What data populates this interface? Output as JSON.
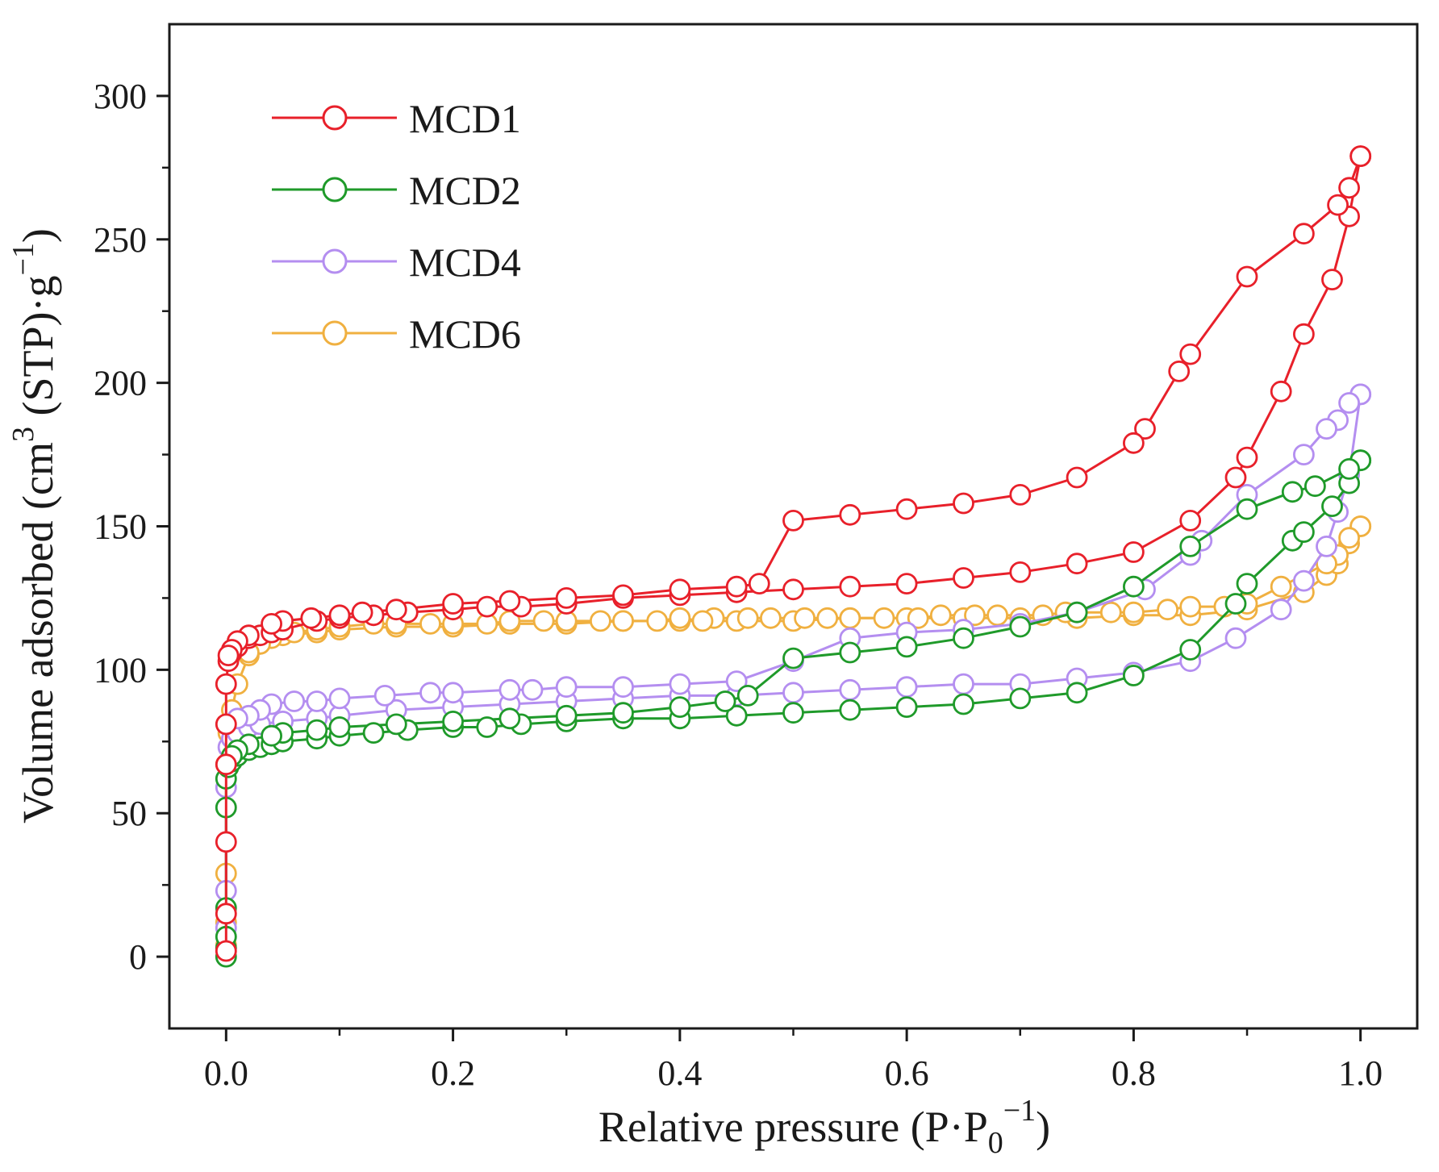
{
  "chart_data": {
    "type": "line",
    "xlabel": "Relative pressure (P·P",
    "xlabel_sub": "0",
    "xlabel_sup": "−1",
    "xlabel_close": ")",
    "ylabel": "Volume adsorbed (cm",
    "ylabel_sup1": "3",
    "ylabel_mid": " (STP)·g",
    "ylabel_sup2": "−1",
    "ylabel_close": ")",
    "xlim": [
      -0.05,
      1.05
    ],
    "ylim": [
      -25,
      325
    ],
    "x_ticks": [
      0.0,
      0.2,
      0.4,
      0.6,
      0.8,
      1.0
    ],
    "x_tick_labels": [
      "0.0",
      "0.2",
      "0.4",
      "0.6",
      "0.8",
      "1.0"
    ],
    "y_ticks": [
      0,
      50,
      100,
      150,
      200,
      250,
      300
    ],
    "y_tick_labels": [
      "0",
      "50",
      "100",
      "150",
      "200",
      "250",
      "300"
    ],
    "grid": false,
    "legend_position": "top-left",
    "series": [
      {
        "name": "MCD1",
        "color": "#e8202a",
        "adsorption": [
          [
            0.0,
            2
          ],
          [
            0.0,
            15
          ],
          [
            0.0,
            40
          ],
          [
            0.0,
            67
          ],
          [
            0.0,
            81
          ],
          [
            0.0,
            95
          ],
          [
            0.002,
            103
          ],
          [
            0.005,
            106
          ],
          [
            0.01,
            108
          ],
          [
            0.02,
            111
          ],
          [
            0.03,
            112
          ],
          [
            0.04,
            113
          ],
          [
            0.05,
            114
          ],
          [
            0.08,
            117
          ],
          [
            0.1,
            118
          ],
          [
            0.13,
            119
          ],
          [
            0.16,
            120
          ],
          [
            0.2,
            121
          ],
          [
            0.23,
            122
          ],
          [
            0.26,
            122
          ],
          [
            0.3,
            123
          ],
          [
            0.35,
            125
          ],
          [
            0.4,
            126
          ],
          [
            0.45,
            127
          ],
          [
            0.5,
            128
          ],
          [
            0.55,
            129
          ],
          [
            0.6,
            130
          ],
          [
            0.65,
            132
          ],
          [
            0.7,
            134
          ],
          [
            0.75,
            137
          ],
          [
            0.8,
            141
          ],
          [
            0.85,
            152
          ],
          [
            0.89,
            167
          ],
          [
            0.9,
            174
          ],
          [
            0.93,
            197
          ],
          [
            0.95,
            217
          ],
          [
            0.975,
            236
          ],
          [
            0.99,
            258
          ],
          [
            1.0,
            279
          ]
        ],
        "desorption": [
          [
            1.0,
            279
          ],
          [
            0.99,
            268
          ],
          [
            0.98,
            262
          ],
          [
            0.95,
            252
          ],
          [
            0.9,
            237
          ],
          [
            0.85,
            210
          ],
          [
            0.84,
            204
          ],
          [
            0.81,
            184
          ],
          [
            0.8,
            179
          ],
          [
            0.75,
            167
          ],
          [
            0.7,
            161
          ],
          [
            0.65,
            158
          ],
          [
            0.6,
            156
          ],
          [
            0.55,
            154
          ],
          [
            0.5,
            152
          ],
          [
            0.47,
            130
          ],
          [
            0.45,
            129
          ],
          [
            0.4,
            128
          ],
          [
            0.35,
            126
          ],
          [
            0.3,
            125
          ],
          [
            0.25,
            124
          ],
          [
            0.2,
            123
          ],
          [
            0.15,
            121
          ],
          [
            0.12,
            120
          ],
          [
            0.1,
            119
          ],
          [
            0.075,
            118
          ],
          [
            0.05,
            117
          ],
          [
            0.04,
            116
          ],
          [
            0.02,
            112
          ],
          [
            0.01,
            110
          ],
          [
            0.005,
            107
          ],
          [
            0.002,
            105
          ]
        ]
      },
      {
        "name": "MCD2",
        "color": "#1f9a2a",
        "adsorption": [
          [
            0.0,
            0
          ],
          [
            0.0,
            3
          ],
          [
            0.0,
            7
          ],
          [
            0.0,
            17
          ],
          [
            0.0,
            52
          ],
          [
            0.0,
            62
          ],
          [
            0.002,
            66
          ],
          [
            0.005,
            68
          ],
          [
            0.01,
            70
          ],
          [
            0.02,
            72
          ],
          [
            0.03,
            73
          ],
          [
            0.04,
            74
          ],
          [
            0.05,
            75
          ],
          [
            0.08,
            76
          ],
          [
            0.1,
            77
          ],
          [
            0.13,
            78
          ],
          [
            0.16,
            79
          ],
          [
            0.2,
            80
          ],
          [
            0.23,
            80
          ],
          [
            0.26,
            81
          ],
          [
            0.3,
            82
          ],
          [
            0.35,
            83
          ],
          [
            0.4,
            83
          ],
          [
            0.45,
            84
          ],
          [
            0.5,
            85
          ],
          [
            0.55,
            86
          ],
          [
            0.6,
            87
          ],
          [
            0.65,
            88
          ],
          [
            0.7,
            90
          ],
          [
            0.75,
            92
          ],
          [
            0.8,
            98
          ],
          [
            0.85,
            107
          ],
          [
            0.89,
            123
          ],
          [
            0.9,
            130
          ],
          [
            0.94,
            145
          ],
          [
            0.95,
            148
          ],
          [
            0.975,
            157
          ],
          [
            0.99,
            165
          ],
          [
            1.0,
            173
          ]
        ],
        "desorption": [
          [
            1.0,
            173
          ],
          [
            0.99,
            170
          ],
          [
            0.96,
            164
          ],
          [
            0.94,
            162
          ],
          [
            0.9,
            156
          ],
          [
            0.85,
            143
          ],
          [
            0.8,
            129
          ],
          [
            0.75,
            120
          ],
          [
            0.7,
            115
          ],
          [
            0.65,
            111
          ],
          [
            0.6,
            108
          ],
          [
            0.55,
            106
          ],
          [
            0.5,
            104
          ],
          [
            0.46,
            91
          ],
          [
            0.44,
            89
          ],
          [
            0.4,
            87
          ],
          [
            0.35,
            85
          ],
          [
            0.3,
            84
          ],
          [
            0.25,
            83
          ],
          [
            0.2,
            82
          ],
          [
            0.15,
            81
          ],
          [
            0.1,
            80
          ],
          [
            0.08,
            79
          ],
          [
            0.05,
            78
          ],
          [
            0.04,
            77
          ],
          [
            0.02,
            74
          ],
          [
            0.01,
            72
          ],
          [
            0.005,
            70
          ]
        ]
      },
      {
        "name": "MCD4",
        "color": "#b48ef0",
        "adsorption": [
          [
            0.0,
            3
          ],
          [
            0.0,
            10
          ],
          [
            0.0,
            23
          ],
          [
            0.0,
            59
          ],
          [
            0.002,
            73
          ],
          [
            0.005,
            76
          ],
          [
            0.01,
            78
          ],
          [
            0.02,
            80
          ],
          [
            0.03,
            81
          ],
          [
            0.05,
            82
          ],
          [
            0.08,
            83
          ],
          [
            0.1,
            84
          ],
          [
            0.15,
            86
          ],
          [
            0.2,
            87
          ],
          [
            0.25,
            88
          ],
          [
            0.3,
            89
          ],
          [
            0.35,
            90
          ],
          [
            0.4,
            91
          ],
          [
            0.45,
            91
          ],
          [
            0.5,
            92
          ],
          [
            0.55,
            93
          ],
          [
            0.6,
            94
          ],
          [
            0.65,
            95
          ],
          [
            0.7,
            95
          ],
          [
            0.75,
            97
          ],
          [
            0.8,
            99
          ],
          [
            0.85,
            103
          ],
          [
            0.89,
            111
          ],
          [
            0.93,
            121
          ],
          [
            0.95,
            131
          ],
          [
            0.97,
            143
          ],
          [
            0.98,
            155
          ],
          [
            0.99,
            168
          ],
          [
            1.0,
            196
          ]
        ],
        "desorption": [
          [
            1.0,
            196
          ],
          [
            0.99,
            193
          ],
          [
            0.98,
            187
          ],
          [
            0.97,
            184
          ],
          [
            0.95,
            175
          ],
          [
            0.9,
            161
          ],
          [
            0.86,
            145
          ],
          [
            0.85,
            140
          ],
          [
            0.81,
            128
          ],
          [
            0.75,
            120
          ],
          [
            0.7,
            116
          ],
          [
            0.65,
            114
          ],
          [
            0.6,
            113
          ],
          [
            0.55,
            111
          ],
          [
            0.5,
            103
          ],
          [
            0.45,
            96
          ],
          [
            0.4,
            95
          ],
          [
            0.35,
            94
          ],
          [
            0.3,
            94
          ],
          [
            0.27,
            93
          ],
          [
            0.25,
            93
          ],
          [
            0.2,
            92
          ],
          [
            0.18,
            92
          ],
          [
            0.14,
            91
          ],
          [
            0.1,
            90
          ],
          [
            0.08,
            89
          ],
          [
            0.06,
            89
          ],
          [
            0.04,
            88
          ],
          [
            0.03,
            86
          ],
          [
            0.02,
            84
          ],
          [
            0.01,
            83
          ]
        ]
      },
      {
        "name": "MCD6",
        "color": "#f0b040",
        "adsorption": [
          [
            0.0,
            4
          ],
          [
            0.0,
            12
          ],
          [
            0.0,
            29
          ],
          [
            0.0,
            67
          ],
          [
            0.002,
            78
          ],
          [
            0.005,
            86
          ],
          [
            0.01,
            95
          ],
          [
            0.02,
            105
          ],
          [
            0.03,
            109
          ],
          [
            0.05,
            112
          ],
          [
            0.08,
            113
          ],
          [
            0.1,
            114
          ],
          [
            0.15,
            115
          ],
          [
            0.2,
            115
          ],
          [
            0.25,
            116
          ],
          [
            0.3,
            116
          ],
          [
            0.35,
            117
          ],
          [
            0.4,
            117
          ],
          [
            0.45,
            117
          ],
          [
            0.5,
            117
          ],
          [
            0.55,
            118
          ],
          [
            0.6,
            118
          ],
          [
            0.65,
            118
          ],
          [
            0.7,
            118
          ],
          [
            0.75,
            118
          ],
          [
            0.8,
            119
          ],
          [
            0.85,
            119
          ],
          [
            0.9,
            121
          ],
          [
            0.95,
            127
          ],
          [
            0.97,
            133
          ],
          [
            0.98,
            137
          ],
          [
            0.99,
            144
          ],
          [
            1.0,
            150
          ]
        ],
        "desorption": [
          [
            1.0,
            150
          ],
          [
            0.99,
            146
          ],
          [
            0.98,
            140
          ],
          [
            0.97,
            137
          ],
          [
            0.93,
            129
          ],
          [
            0.9,
            123
          ],
          [
            0.88,
            122
          ],
          [
            0.85,
            122
          ],
          [
            0.83,
            121
          ],
          [
            0.8,
            120
          ],
          [
            0.78,
            120
          ],
          [
            0.74,
            120
          ],
          [
            0.72,
            119
          ],
          [
            0.68,
            119
          ],
          [
            0.66,
            119
          ],
          [
            0.63,
            119
          ],
          [
            0.61,
            118
          ],
          [
            0.58,
            118
          ],
          [
            0.55,
            118
          ],
          [
            0.53,
            118
          ],
          [
            0.51,
            118
          ],
          [
            0.48,
            118
          ],
          [
            0.46,
            118
          ],
          [
            0.43,
            118
          ],
          [
            0.42,
            117
          ],
          [
            0.4,
            118
          ],
          [
            0.38,
            117
          ],
          [
            0.35,
            117
          ],
          [
            0.33,
            117
          ],
          [
            0.3,
            117
          ],
          [
            0.28,
            117
          ],
          [
            0.25,
            117
          ],
          [
            0.23,
            116
          ],
          [
            0.2,
            116
          ],
          [
            0.18,
            116
          ],
          [
            0.15,
            116
          ],
          [
            0.13,
            116
          ],
          [
            0.1,
            115
          ],
          [
            0.08,
            114
          ],
          [
            0.06,
            113
          ],
          [
            0.04,
            111
          ],
          [
            0.03,
            109
          ],
          [
            0.02,
            106
          ]
        ]
      }
    ]
  }
}
